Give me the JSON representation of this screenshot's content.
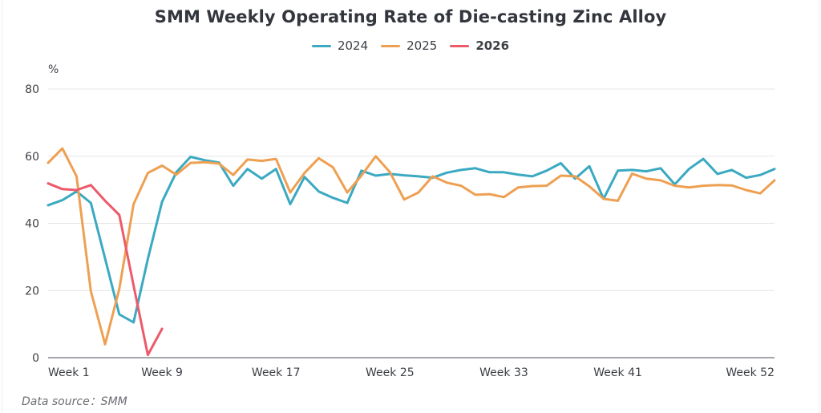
{
  "chart_data": {
    "type": "line",
    "title": "SMM Weekly Operating Rate of Die-casting Zinc Alloy",
    "xlabel": "",
    "ylabel": "%",
    "ylim": [
      0,
      80
    ],
    "yticks": [
      0,
      20,
      40,
      60,
      80
    ],
    "grid": true,
    "legend_position": "top-center",
    "x": [
      "Week 1",
      "Week 2",
      "Week 3",
      "Week 4",
      "Week 5",
      "Week 6",
      "Week 7",
      "Week 8",
      "Week 9",
      "Week 10",
      "Week 11",
      "Week 12",
      "Week 13",
      "Week 14",
      "Week 15",
      "Week 16",
      "Week 17",
      "Week 18",
      "Week 19",
      "Week 20",
      "Week 21",
      "Week 22",
      "Week 23",
      "Week 24",
      "Week 25",
      "Week 26",
      "Week 27",
      "Week 28",
      "Week 29",
      "Week 30",
      "Week 31",
      "Week 32",
      "Week 33",
      "Week 34",
      "Week 35",
      "Week 36",
      "Week 37",
      "Week 38",
      "Week 39",
      "Week 40",
      "Week 41",
      "Week 42",
      "Week 43",
      "Week 44",
      "Week 45",
      "Week 46",
      "Week 47",
      "Week 48",
      "Week 49",
      "Week 50",
      "Week 51",
      "Week 52"
    ],
    "xtick_labels": [
      {
        "index": 0,
        "label": "Week 1"
      },
      {
        "index": 8,
        "label": "Week 9"
      },
      {
        "index": 16,
        "label": "Week 17"
      },
      {
        "index": 24,
        "label": "Week 25"
      },
      {
        "index": 32,
        "label": "Week 33"
      },
      {
        "index": 40,
        "label": "Week 41"
      },
      {
        "index": 51,
        "label": "Week 52"
      }
    ],
    "series": [
      {
        "name": "2024",
        "color": "#3aa9c1",
        "bold_legend": false,
        "values": [
          45.4,
          46.9,
          49.5,
          46.1,
          29.5,
          12.9,
          10.5,
          29.4,
          46.4,
          55.2,
          59.8,
          58.8,
          58.1,
          51.2,
          56.2,
          53.3,
          56.2,
          45.7,
          53.8,
          49.5,
          47.6,
          46.1,
          55.7,
          54.2,
          54.7,
          54.3,
          54.0,
          53.6,
          55.1,
          55.9,
          56.4,
          55.2,
          55.2,
          54.5,
          54.0,
          55.7,
          57.9,
          53.3,
          57.0,
          47.3,
          55.7,
          55.9,
          55.5,
          56.4,
          51.6,
          56.2,
          59.2,
          54.7,
          55.9,
          53.6,
          54.4,
          56.2
        ]
      },
      {
        "name": "2025",
        "color": "#eea052",
        "bold_legend": false,
        "values": [
          58.0,
          62.3,
          54.0,
          19.8,
          4.0,
          20.5,
          45.7,
          55.0,
          57.2,
          54.5,
          58.0,
          58.2,
          57.8,
          54.4,
          59.0,
          58.6,
          59.2,
          49.2,
          55.0,
          59.4,
          56.7,
          49.2,
          54.2,
          60.0,
          55.2,
          47.1,
          49.2,
          54.0,
          52.1,
          51.2,
          48.5,
          48.7,
          47.8,
          50.7,
          51.1,
          51.2,
          54.2,
          54.0,
          51.0,
          47.3,
          46.7,
          54.8,
          53.3,
          52.8,
          51.2,
          50.7,
          51.2,
          51.4,
          51.3,
          49.9,
          48.9,
          52.8
        ]
      },
      {
        "name": "2026",
        "color": "#ec5a6b",
        "bold_legend": true,
        "values": [
          51.9,
          50.2,
          49.9,
          51.4,
          46.7,
          42.5,
          21.5,
          0.8,
          8.6
        ]
      }
    ],
    "source": "Data source：SMM"
  }
}
